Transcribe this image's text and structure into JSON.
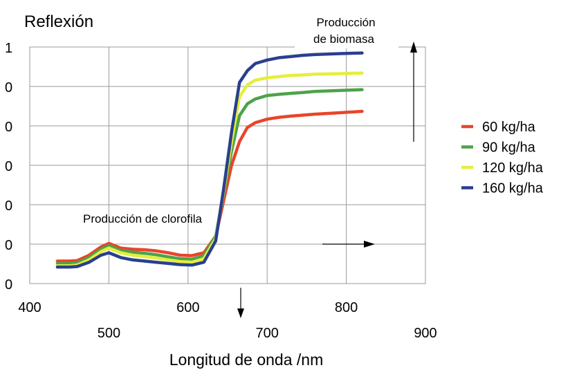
{
  "chart_data": {
    "type": "line",
    "title": "",
    "ylabel": "Reflexión",
    "xlabel": "Longitud de onda /nm",
    "xlim": [
      400,
      900
    ],
    "ylim": [
      0,
      1
    ],
    "x_ticks_upper": [
      "400",
      "600",
      "800"
    ],
    "x_ticks_lower": [
      "500",
      "700",
      "900"
    ],
    "y_tick_labels": [
      "1",
      "0",
      "0",
      "0",
      "0",
      "0",
      "0"
    ],
    "grid": true,
    "legend_position": "right",
    "annotations": {
      "chlorophyll": "Producción de clorofila",
      "biomass_line1": "Producción",
      "biomass_line2": "de biomasa"
    },
    "x": [
      435,
      450,
      460,
      475,
      490,
      500,
      515,
      530,
      545,
      560,
      575,
      590,
      605,
      620,
      635,
      645,
      655,
      665,
      675,
      685,
      700,
      715,
      730,
      745,
      760,
      790,
      820
    ],
    "series": [
      {
        "name": "60 kg/ha",
        "color": "#e8452a",
        "values": [
          0.095,
          0.095,
          0.097,
          0.12,
          0.155,
          0.17,
          0.15,
          0.145,
          0.143,
          0.138,
          0.13,
          0.12,
          0.118,
          0.13,
          0.2,
          0.35,
          0.5,
          0.6,
          0.66,
          0.68,
          0.695,
          0.703,
          0.708,
          0.712,
          0.716,
          0.722,
          0.728
        ]
      },
      {
        "name": "90 kg/ha",
        "color": "#4ea24a",
        "values": [
          0.085,
          0.085,
          0.088,
          0.11,
          0.145,
          0.16,
          0.14,
          0.133,
          0.128,
          0.122,
          0.113,
          0.105,
          0.103,
          0.117,
          0.2,
          0.38,
          0.56,
          0.71,
          0.76,
          0.78,
          0.795,
          0.8,
          0.804,
          0.808,
          0.812,
          0.816,
          0.82
        ]
      },
      {
        "name": "120 kg/ha",
        "color": "#e4ef3c",
        "values": [
          0.075,
          0.075,
          0.078,
          0.1,
          0.135,
          0.15,
          0.13,
          0.12,
          0.114,
          0.108,
          0.1,
          0.093,
          0.09,
          0.105,
          0.19,
          0.39,
          0.6,
          0.79,
          0.84,
          0.86,
          0.87,
          0.875,
          0.88,
          0.882,
          0.885,
          0.887,
          0.89
        ]
      },
      {
        "name": "160 kg/ha",
        "color": "#2a3f8e",
        "values": [
          0.07,
          0.07,
          0.072,
          0.09,
          0.12,
          0.13,
          0.11,
          0.1,
          0.095,
          0.09,
          0.085,
          0.08,
          0.078,
          0.09,
          0.18,
          0.4,
          0.64,
          0.85,
          0.9,
          0.93,
          0.945,
          0.955,
          0.96,
          0.965,
          0.968,
          0.972,
          0.975
        ]
      }
    ]
  }
}
